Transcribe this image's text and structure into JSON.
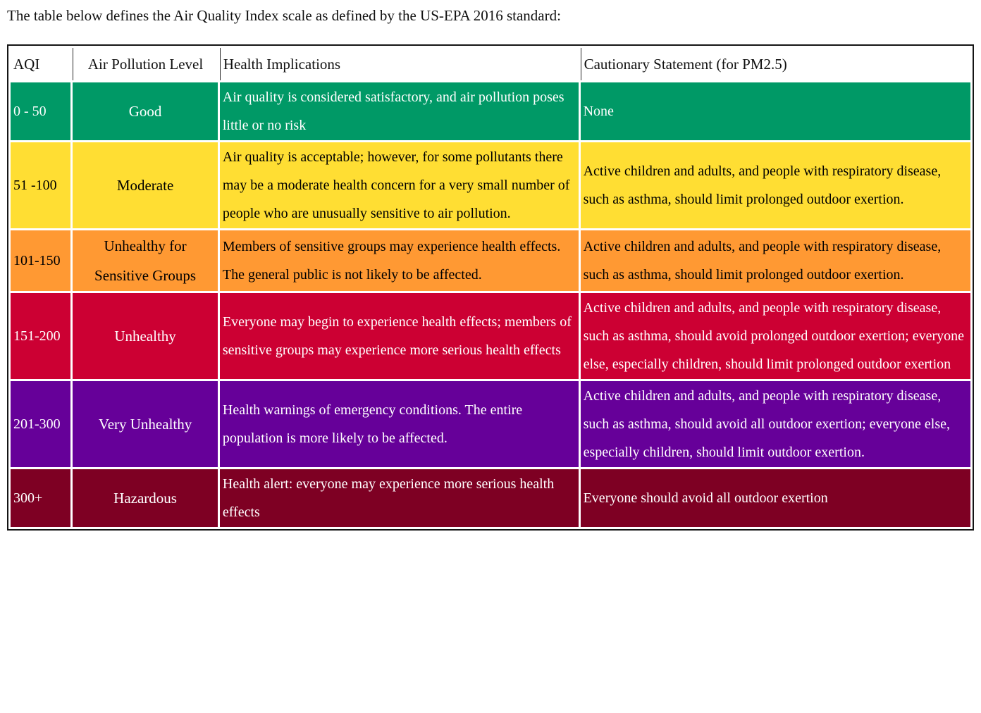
{
  "page": {
    "intro": "The table below defines the Air Quality Index scale as defined by the US-EPA 2016 standard:"
  },
  "table": {
    "headers": [
      "AQI",
      "Air Pollution Level",
      "Health Implications",
      "Cautionary Statement (for PM2.5)"
    ],
    "rows": [
      {
        "aqi": "0 - 50",
        "level": "Good",
        "health": "Air quality is considered satisfactory, and air pollution poses little or no risk",
        "caution": "None",
        "bg": "#009966",
        "fg": "#ffffff"
      },
      {
        "aqi": "51 -100",
        "level": "Moderate",
        "health": "Air quality is acceptable; however, for some pollutants there may be a moderate health concern for a very small number of people who are unusually sensitive to air pollution.",
        "caution": "Active children and adults, and people with respiratory disease, such as asthma, should limit prolonged outdoor exertion.",
        "bg": "#ffde33",
        "fg": "#000000"
      },
      {
        "aqi": "101-150",
        "level": "Unhealthy for Sensitive Groups",
        "health": "Members of sensitive groups may experience health effects. The general public is not likely to be affected.",
        "caution": "Active children and adults, and people with respiratory disease, such as asthma, should limit prolonged outdoor exertion.",
        "bg": "#ff9933",
        "fg": "#000000"
      },
      {
        "aqi": "151-200",
        "level": "Unhealthy",
        "health": "Everyone may begin to experience health effects; members of sensitive groups may experience more serious health effects",
        "caution": "Active children and adults, and people with respiratory disease, such as asthma, should avoid prolonged outdoor exertion; everyone else, especially children, should limit prolonged outdoor exertion",
        "bg": "#cc0033",
        "fg": "#ffffff"
      },
      {
        "aqi": "201-300",
        "level": "Very Unhealthy",
        "health": "Health warnings of emergency conditions. The entire population is more likely to be affected.",
        "caution": "Active children and adults, and people with respiratory disease, such as asthma, should avoid all outdoor exertion; everyone else, especially children, should limit outdoor exertion.",
        "bg": "#660099",
        "fg": "#ffffff"
      },
      {
        "aqi": "300+",
        "level": "Hazardous",
        "health": "Health alert: everyone may experience more serious health effects",
        "caution": "Everyone should avoid all outdoor exertion",
        "bg": "#7e0023",
        "fg": "#ffffff"
      }
    ]
  }
}
